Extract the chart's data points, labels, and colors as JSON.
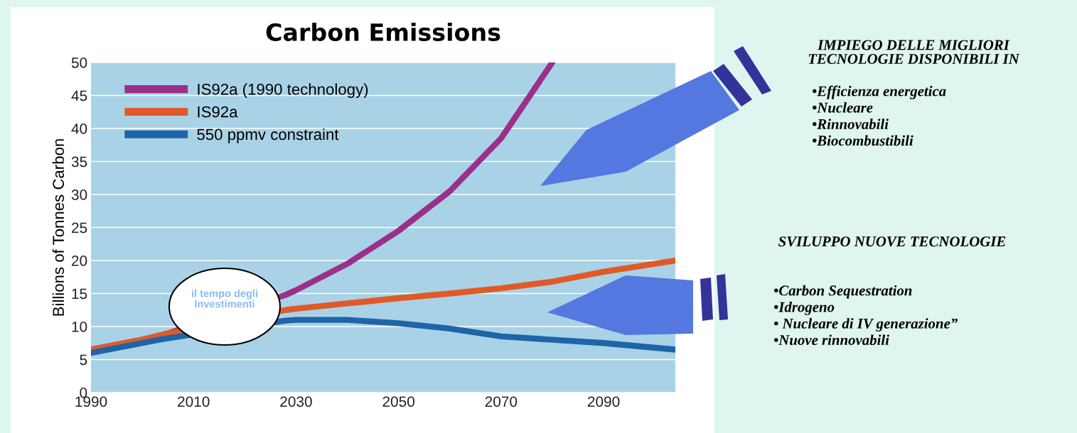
{
  "chart_data": {
    "type": "line",
    "title": "Carbon Emissions",
    "ylabel": "Billions of Tonnes Carbon",
    "x": [
      1990,
      2000,
      2004,
      2028,
      2030,
      2040,
      2050,
      2060,
      2070,
      2080,
      2090,
      2104
    ],
    "series": [
      {
        "name": "IS92a (1990 technology)",
        "color": "#9b2f8c",
        "values": [
          6.5,
          8,
          8.7,
          14.8,
          15.5,
          19.5,
          24.5,
          30.5,
          38.5,
          50,
          null,
          null
        ]
      },
      {
        "name": "IS92a",
        "color": "#e05a28",
        "values": [
          6.5,
          8,
          8.8,
          12.5,
          12.7,
          13.5,
          14.3,
          15,
          15.8,
          16.8,
          18.3,
          20
        ]
      },
      {
        "name": "550 ppmv constraint",
        "color": "#1f64a8",
        "values": [
          6,
          7.5,
          8.1,
          10.9,
          11,
          11,
          10.5,
          9.7,
          8.5,
          8,
          7.5,
          6.5
        ]
      }
    ],
    "xlim": [
      1990,
      2104
    ],
    "xticks": [
      1990,
      2010,
      2030,
      2050,
      2070,
      2090
    ],
    "ylim": [
      0,
      50
    ],
    "yticks": [
      0,
      5,
      10,
      15,
      20,
      25,
      30,
      35,
      40,
      45,
      50
    ],
    "grid": "y",
    "legend": "top left",
    "marker": "none",
    "line_style": "solid",
    "annotations": [
      "il tempo degli\nInvestimenti",
      "IMPIEGO DELLE MIGLIORI\nTECNOLOGIE DISPONIBILI IN",
      "•Efficienza energetica\n•Nucleare\n•Rinnovabili\n•Biocombustibili",
      "SVILUPPO NUOVE TECNOLOGIE",
      "•Carbon Sequestration\n•Idrogeno\n• Nucleare di IV generazione”\n•Nuove rinnovabili"
    ]
  }
}
